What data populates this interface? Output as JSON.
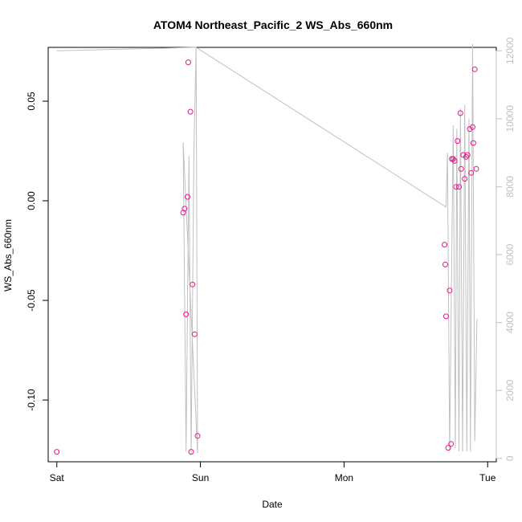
{
  "chart_data": {
    "type": "scatter",
    "title": "ATOM4 Northeast_Pacific_2 WS_Abs_660nm",
    "xlabel": "Date",
    "ylabel": "WS_Abs_660nm",
    "x_ticks": [
      "Sat",
      "Sun",
      "Mon",
      "Tue"
    ],
    "x_unit": "days from Sat 00:00",
    "xlim": [
      -0.06,
      3.06
    ],
    "ylim": [
      -0.131,
      0.077
    ],
    "y_ticks": [
      -0.1,
      -0.05,
      0.0,
      0.05
    ],
    "y_tick_labels": [
      "-0.10",
      "-0.05",
      "0.00",
      "0.05"
    ],
    "y2lim": [
      -100,
      12100
    ],
    "y2_ticks": [
      0,
      2000,
      4000,
      6000,
      8000,
      10000,
      12000
    ],
    "y2_tick_labels": [
      "0",
      "2000",
      "4000",
      "6000",
      "8000",
      "10000",
      "12000"
    ],
    "colors": {
      "points": "#e8168f",
      "line": "#c0c0c0",
      "right_axis": "#c0c0c0"
    },
    "points": [
      {
        "x": 0.0,
        "y": -0.126
      },
      {
        "x": 0.88,
        "y": -0.006
      },
      {
        "x": 0.89,
        "y": -0.004
      },
      {
        "x": 0.9,
        "y": -0.057
      },
      {
        "x": 0.91,
        "y": 0.002
      },
      {
        "x": 0.915,
        "y": 0.0695
      },
      {
        "x": 0.93,
        "y": 0.0447
      },
      {
        "x": 0.935,
        "y": -0.126
      },
      {
        "x": 0.945,
        "y": -0.042
      },
      {
        "x": 0.96,
        "y": -0.067
      },
      {
        "x": 0.98,
        "y": -0.118
      },
      {
        "x": 2.7,
        "y": -0.022
      },
      {
        "x": 2.705,
        "y": -0.032
      },
      {
        "x": 2.71,
        "y": -0.058
      },
      {
        "x": 2.725,
        "y": -0.124
      },
      {
        "x": 2.735,
        "y": -0.045
      },
      {
        "x": 2.745,
        "y": -0.122
      },
      {
        "x": 2.75,
        "y": 0.021
      },
      {
        "x": 2.76,
        "y": 0.021
      },
      {
        "x": 2.77,
        "y": 0.02
      },
      {
        "x": 2.78,
        "y": 0.007
      },
      {
        "x": 2.79,
        "y": 0.03
      },
      {
        "x": 2.8,
        "y": 0.007
      },
      {
        "x": 2.81,
        "y": 0.044
      },
      {
        "x": 2.815,
        "y": 0.016
      },
      {
        "x": 2.83,
        "y": 0.023
      },
      {
        "x": 2.84,
        "y": 0.011
      },
      {
        "x": 2.85,
        "y": 0.022
      },
      {
        "x": 2.86,
        "y": 0.023
      },
      {
        "x": 2.875,
        "y": 0.036
      },
      {
        "x": 2.885,
        "y": 0.014
      },
      {
        "x": 2.895,
        "y": 0.037
      },
      {
        "x": 2.9,
        "y": 0.029
      },
      {
        "x": 2.91,
        "y": 0.066
      },
      {
        "x": 2.92,
        "y": 0.016
      }
    ],
    "line_right_axis": [
      {
        "x": 0.0,
        "y2": 12000
      },
      {
        "x": 0.97,
        "y2": 12100
      },
      {
        "x": 0.98,
        "y2": 150
      },
      {
        "x": 0.88,
        "y2": 9300
      },
      {
        "x": 0.9,
        "y2": 200
      },
      {
        "x": 0.92,
        "y2": 8900
      },
      {
        "x": 0.935,
        "y2": 100
      },
      {
        "x": 0.955,
        "y2": 9100
      },
      {
        "x": 0.97,
        "y2": 12100
      },
      {
        "x": 2.71,
        "y2": 7400
      },
      {
        "x": 2.72,
        "y2": 9000
      },
      {
        "x": 2.735,
        "y2": 200
      },
      {
        "x": 2.76,
        "y2": 9800
      },
      {
        "x": 2.775,
        "y2": 300
      },
      {
        "x": 2.785,
        "y2": 9700
      },
      {
        "x": 2.8,
        "y2": 200
      },
      {
        "x": 2.81,
        "y2": 10300
      },
      {
        "x": 2.825,
        "y2": 200
      },
      {
        "x": 2.84,
        "y2": 10400
      },
      {
        "x": 2.855,
        "y2": 200
      },
      {
        "x": 2.87,
        "y2": 10000
      },
      {
        "x": 2.88,
        "y2": 200
      },
      {
        "x": 2.895,
        "y2": 12200
      },
      {
        "x": 2.91,
        "y2": 500
      },
      {
        "x": 2.925,
        "y2": 4100
      }
    ]
  }
}
